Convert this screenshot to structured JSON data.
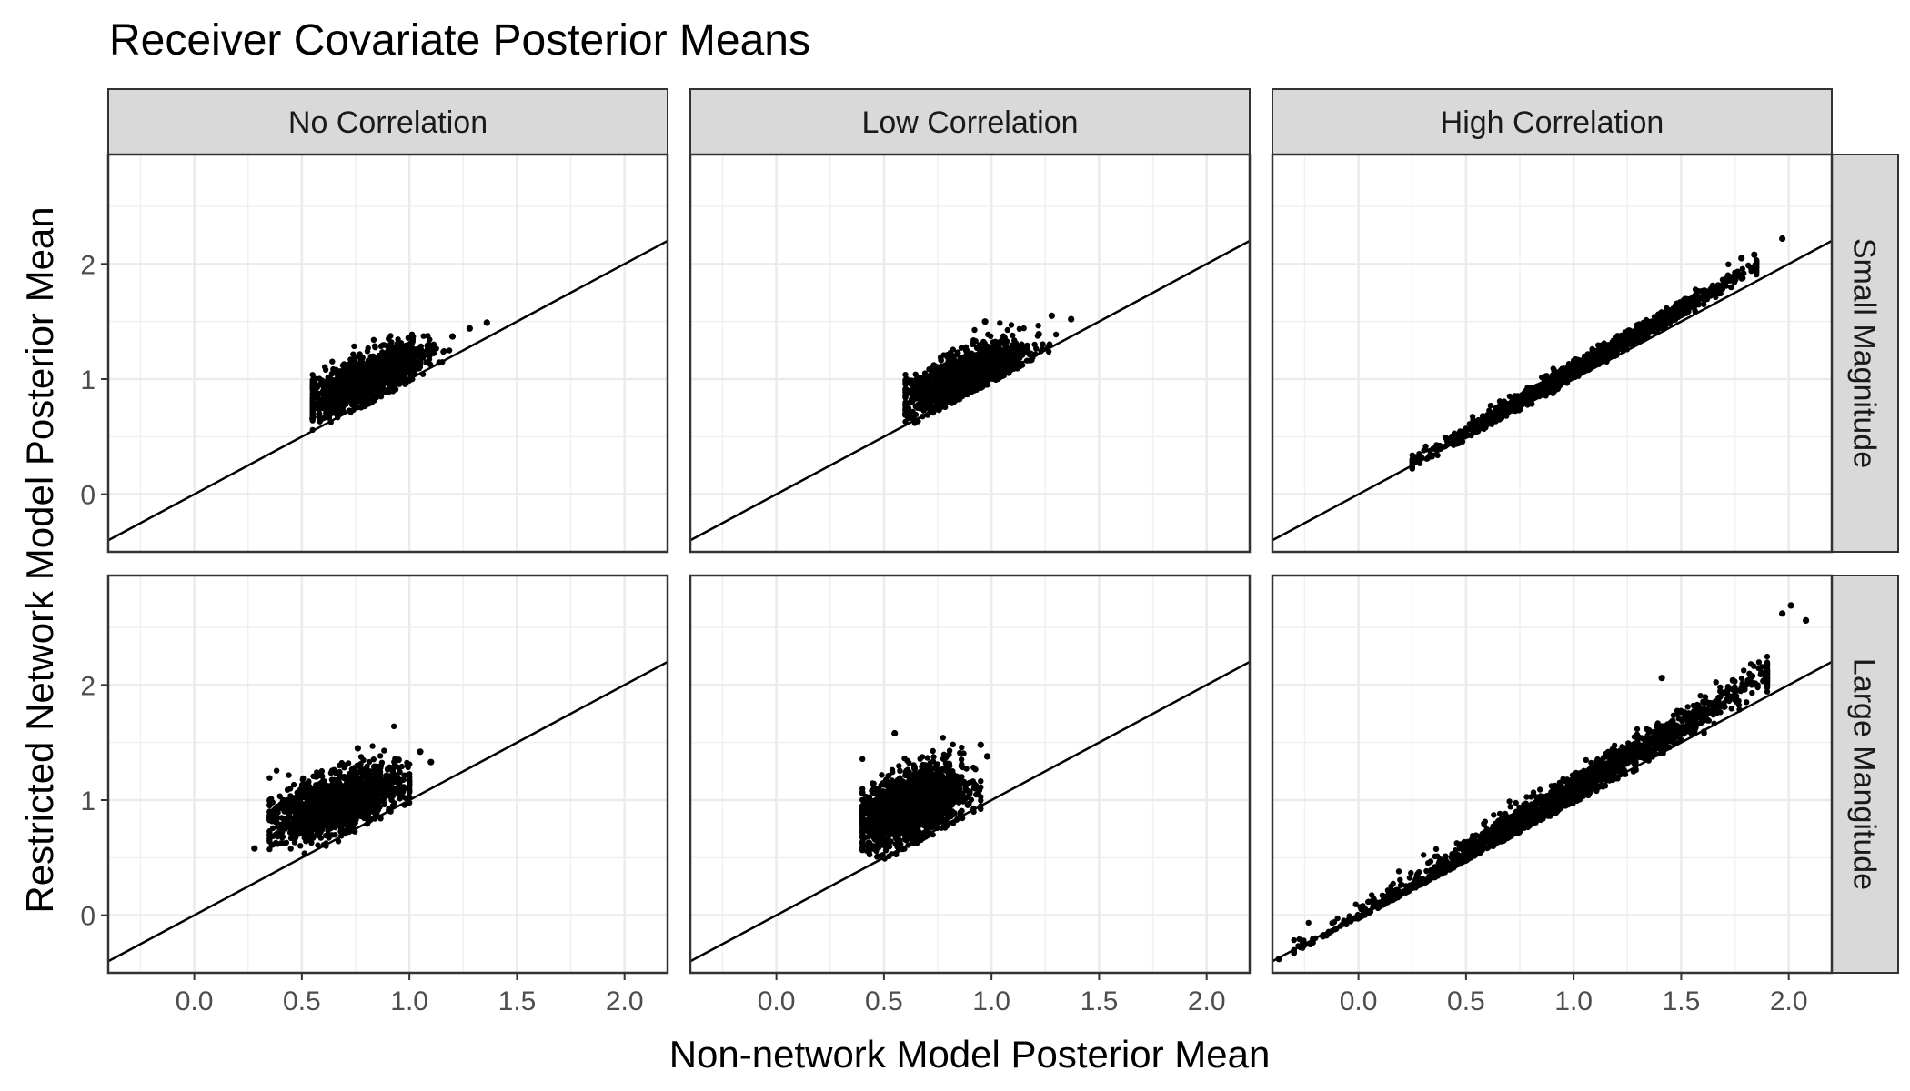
{
  "chart_data": {
    "type": "scatter",
    "title": "Receiver Covariate Posterior Means",
    "xlabel": "Non-network Model Posterior Mean",
    "ylabel": "Restricted Network Model Posterior Mean",
    "xlim": [
      -0.4,
      2.2
    ],
    "ylim": [
      -0.5,
      2.95
    ],
    "xticks": [
      "0.0",
      "0.5",
      "1.0",
      "1.5",
      "2.0"
    ],
    "xtick_values": [
      0,
      0.5,
      1.0,
      1.5,
      2.0
    ],
    "yticks": [
      "0",
      "1",
      "2"
    ],
    "ytick_values": [
      0,
      1,
      2
    ],
    "grid": true,
    "reference_line": "y = x",
    "columns": [
      "No Correlation",
      "Low Correlation",
      "High Correlation"
    ],
    "rows": [
      "Small Magnitude",
      "Large Mangitude"
    ],
    "panels": [
      {
        "row": "Small Magnitude",
        "column": "No Correlation",
        "cloud": {
          "x_range": [
            0.55,
            1.25
          ],
          "center": [
            0.8,
            1.0
          ],
          "x_sd": 0.13,
          "y_sd": 0.1,
          "slope": 0.75,
          "n": 1400
        },
        "extreme_points": [
          [
            0.55,
            0.66
          ],
          [
            1.2,
            1.37
          ],
          [
            1.36,
            1.49
          ],
          [
            1.28,
            1.44
          ],
          [
            0.58,
            0.7
          ]
        ]
      },
      {
        "row": "Small Magnitude",
        "column": "Low Correlation",
        "cloud": {
          "x_range": [
            0.6,
            1.3
          ],
          "center": [
            0.87,
            1.03
          ],
          "x_sd": 0.14,
          "y_sd": 0.1,
          "slope": 0.75,
          "n": 1400
        },
        "extreme_points": [
          [
            0.97,
            1.5
          ],
          [
            1.37,
            1.52
          ],
          [
            1.28,
            1.55
          ],
          [
            0.6,
            0.69
          ],
          [
            1.22,
            1.39
          ]
        ]
      },
      {
        "row": "Small Magnitude",
        "column": "High Correlation",
        "cloud": {
          "x_range": [
            0.25,
            1.85
          ],
          "center": [
            1.05,
            1.13
          ],
          "x_sd": 0.35,
          "y_sd": 0.035,
          "slope": 1.07,
          "n": 1600
        },
        "extreme_points": [
          [
            0.27,
            0.28
          ],
          [
            1.97,
            2.22
          ],
          [
            1.84,
            2.08
          ],
          [
            1.78,
            2.05
          ],
          [
            0.33,
            0.33
          ]
        ]
      },
      {
        "row": "Large Mangitude",
        "column": "No Correlation",
        "cloud": {
          "x_range": [
            0.35,
            1.0
          ],
          "center": [
            0.66,
            0.98
          ],
          "x_sd": 0.14,
          "y_sd": 0.12,
          "slope": 0.55,
          "n": 1800
        },
        "extreme_points": [
          [
            0.28,
            0.58
          ],
          [
            1.05,
            1.42
          ],
          [
            1.1,
            1.33
          ],
          [
            0.76,
            1.45
          ],
          [
            0.95,
            1.35
          ]
        ]
      },
      {
        "row": "Large Mangitude",
        "column": "Low Correlation",
        "cloud": {
          "x_range": [
            0.4,
            0.95
          ],
          "center": [
            0.63,
            0.96
          ],
          "x_sd": 0.12,
          "y_sd": 0.15,
          "slope": 0.6,
          "n": 1800
        },
        "extreme_points": [
          [
            0.43,
            0.55
          ],
          [
            0.55,
            1.58
          ],
          [
            0.95,
            1.48
          ],
          [
            0.98,
            1.38
          ],
          [
            0.45,
            0.6
          ]
        ]
      },
      {
        "row": "Large Mangitude",
        "column": "High Correlation",
        "cloud": {
          "x_range": [
            -0.3,
            1.9
          ],
          "center": [
            0.9,
            0.98
          ],
          "x_sd": 0.48,
          "y_sd": 0.07,
          "slope": 1.12,
          "n": 1800
        },
        "extreme_points": [
          [
            -0.37,
            -0.38
          ],
          [
            2.01,
            2.69
          ],
          [
            2.08,
            2.56
          ],
          [
            1.97,
            2.62
          ],
          [
            1.74,
            2.04
          ],
          [
            1.41,
            2.06
          ]
        ]
      }
    ]
  }
}
